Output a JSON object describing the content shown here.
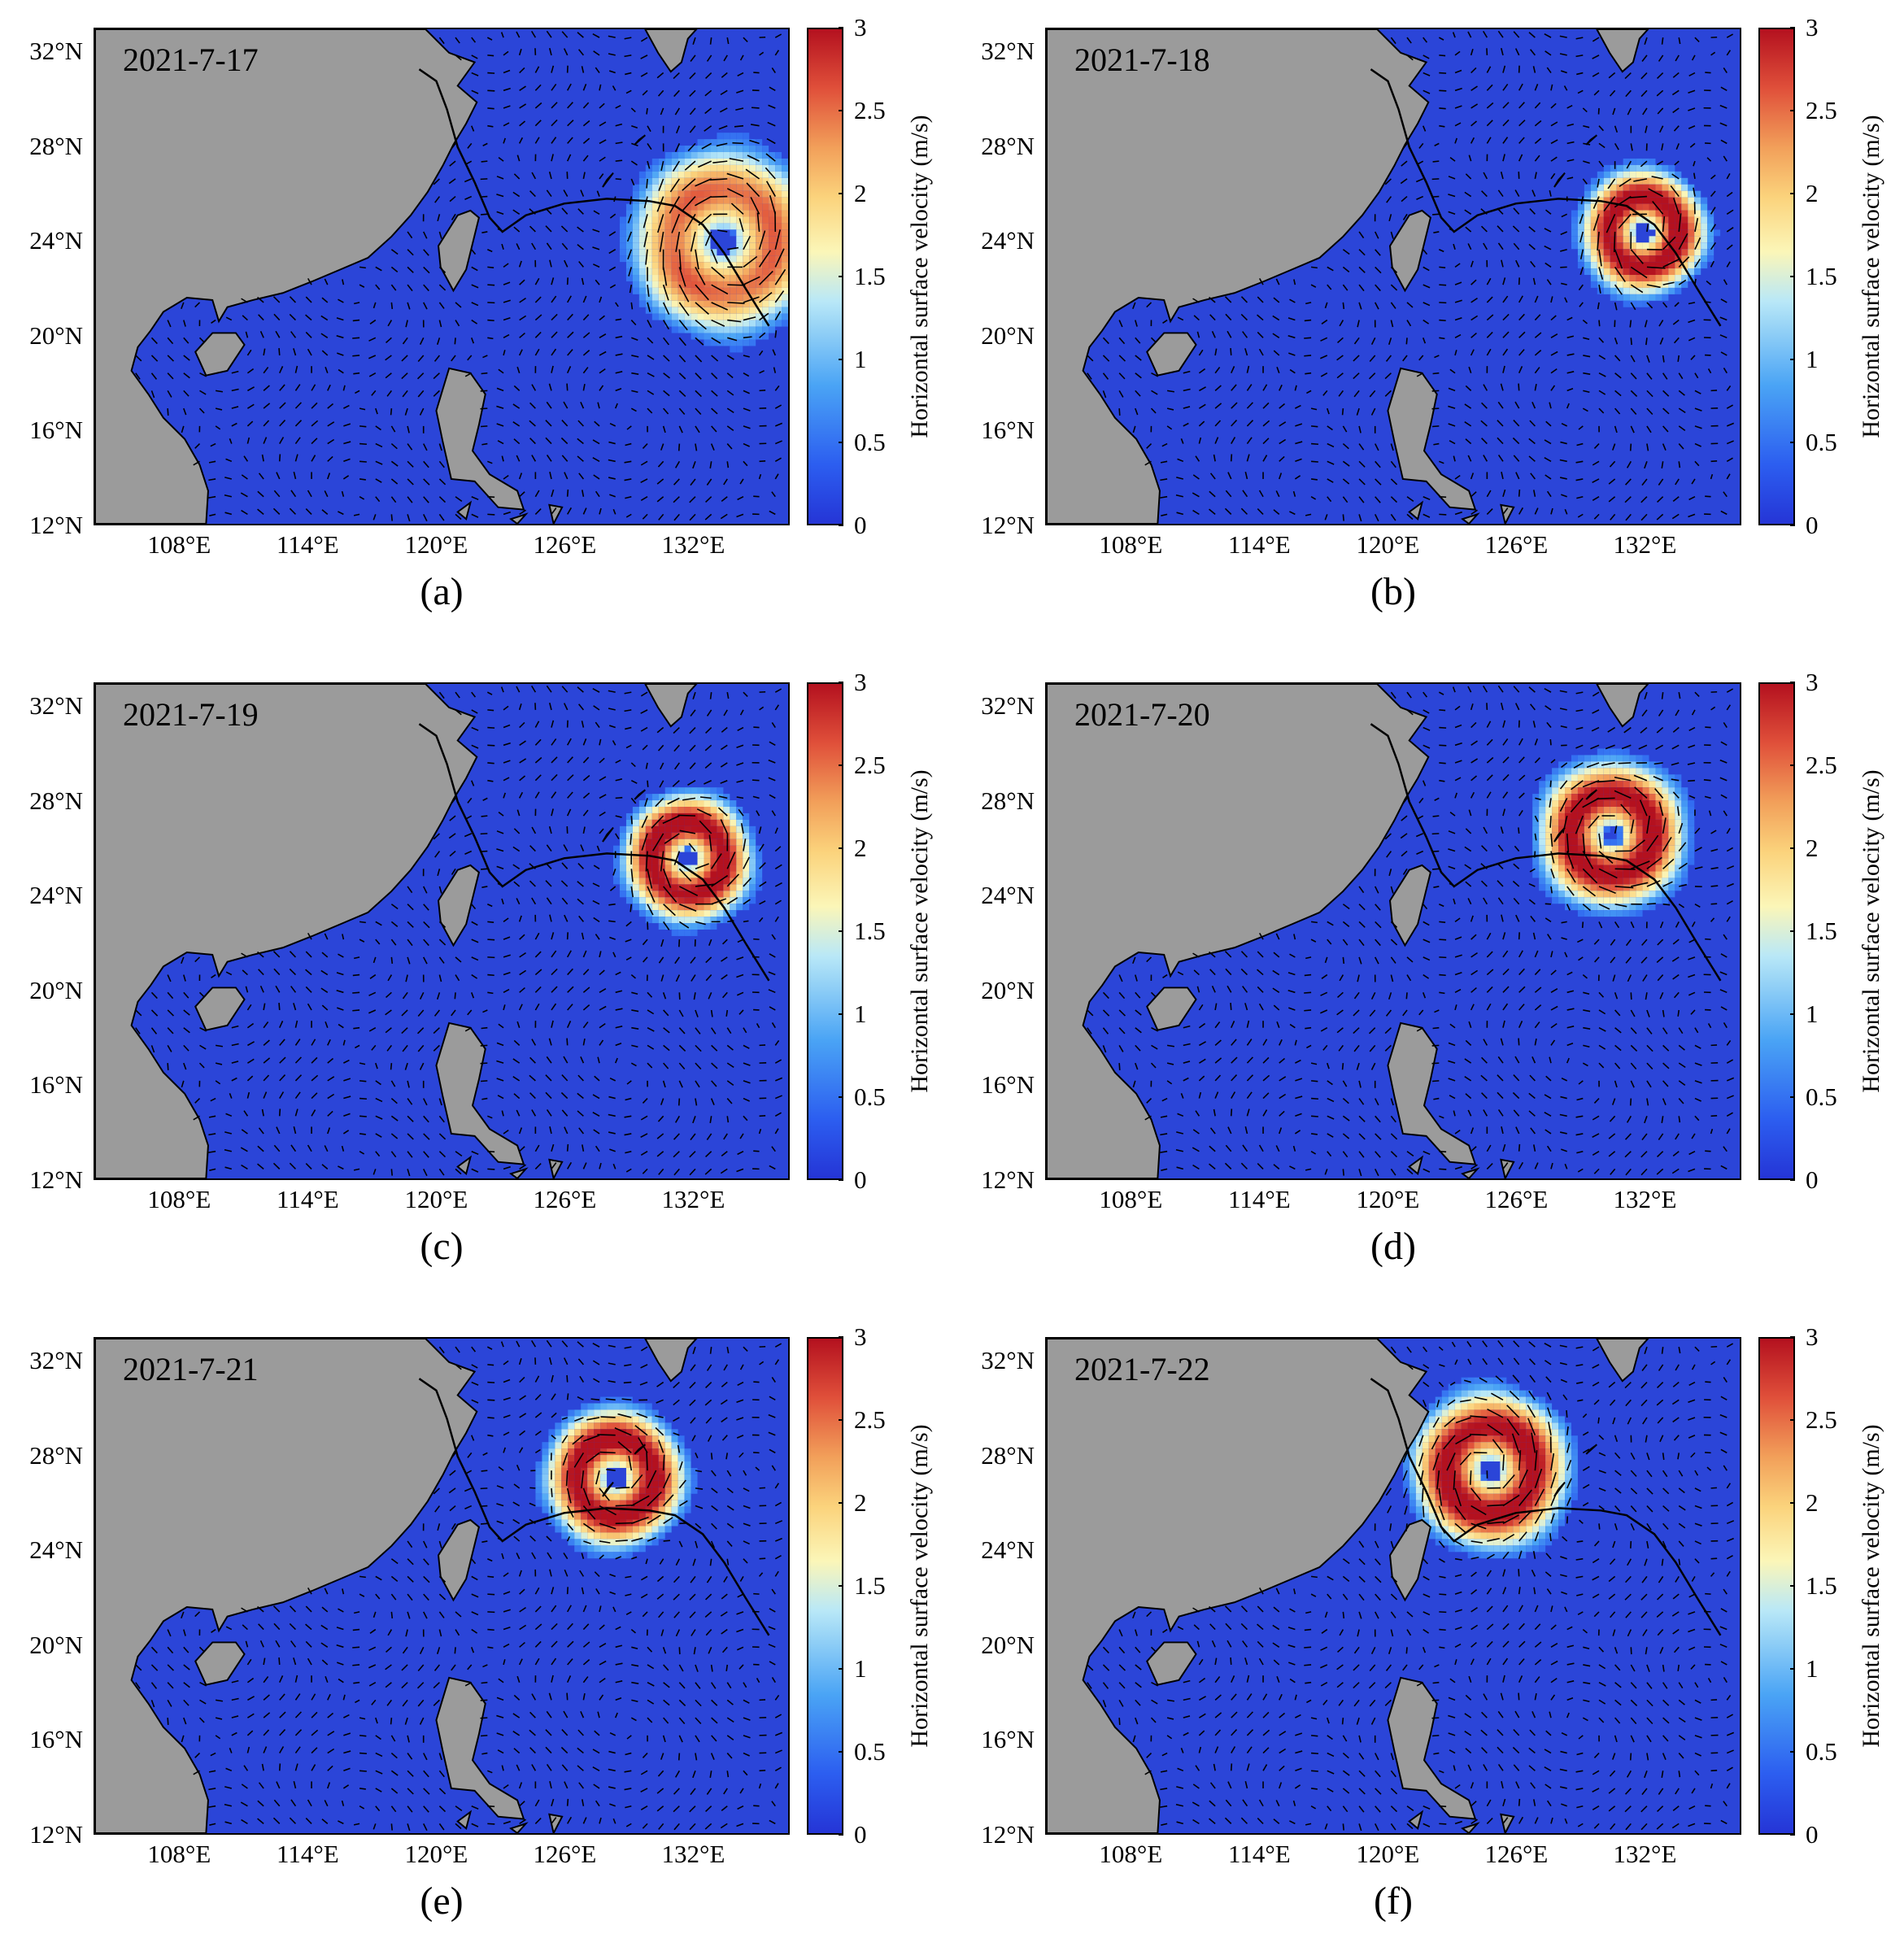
{
  "figure": {
    "colorbar": {
      "title": "Horizontal surface velocity (m/s)",
      "ticks": [
        "0",
        "0.5",
        "1",
        "1.5",
        "2",
        "2.5",
        "3"
      ],
      "range": [
        0,
        3
      ],
      "colormap": [
        "#2535d6",
        "#2c5ef0",
        "#4aa4f5",
        "#b9e8f7",
        "#fbf6b8",
        "#fbd37c",
        "#f2a05a",
        "#e0503a",
        "#b4111f"
      ]
    },
    "lat_ticks": [
      "32°N",
      "28°N",
      "24°N",
      "20°N",
      "16°N",
      "12°N"
    ],
    "lon_ticks": [
      "108°E",
      "114°E",
      "120°E",
      "126°E",
      "132°E"
    ],
    "land_color": "#9b9b9b",
    "ocean_color": "#2b45d8",
    "track_color": "#000000",
    "typhoon_track": [
      [
        135.6,
        20.4
      ],
      [
        134.5,
        22.0
      ],
      [
        133.5,
        23.5
      ],
      [
        132.5,
        24.7
      ],
      [
        131.2,
        25.5
      ],
      [
        130.0,
        25.7
      ],
      [
        128.0,
        25.8
      ],
      [
        126.0,
        25.6
      ],
      [
        124.2,
        25.1
      ],
      [
        123.1,
        24.4
      ],
      [
        122.5,
        25.0
      ],
      [
        121.8,
        26.5
      ],
      [
        121.0,
        28.0
      ],
      [
        120.5,
        29.6
      ],
      [
        120.0,
        30.8
      ],
      [
        119.2,
        31.3
      ]
    ],
    "panels": [
      {
        "letter": "(a)",
        "date": "2021-7-17",
        "center": [
          133.5,
          24.0
        ],
        "radius_deg": 4.0,
        "peak_ms": 2.4
      },
      {
        "letter": "(b)",
        "date": "2021-7-18",
        "center": [
          132.0,
          24.4
        ],
        "radius_deg": 2.7,
        "peak_ms": 3.0
      },
      {
        "letter": "(c)",
        "date": "2021-7-19",
        "center": [
          131.8,
          25.6
        ],
        "radius_deg": 2.8,
        "peak_ms": 3.0
      },
      {
        "letter": "(d)",
        "date": "2021-7-20",
        "center": [
          130.5,
          26.6
        ],
        "radius_deg": 3.2,
        "peak_ms": 3.0
      },
      {
        "letter": "(e)",
        "date": "2021-7-21",
        "center": [
          128.4,
          27.1
        ],
        "radius_deg": 3.0,
        "peak_ms": 3.0
      },
      {
        "letter": "(f)",
        "date": "2021-7-22",
        "center": [
          124.8,
          27.4
        ],
        "radius_deg": 3.4,
        "peak_ms": 3.0
      }
    ]
  }
}
